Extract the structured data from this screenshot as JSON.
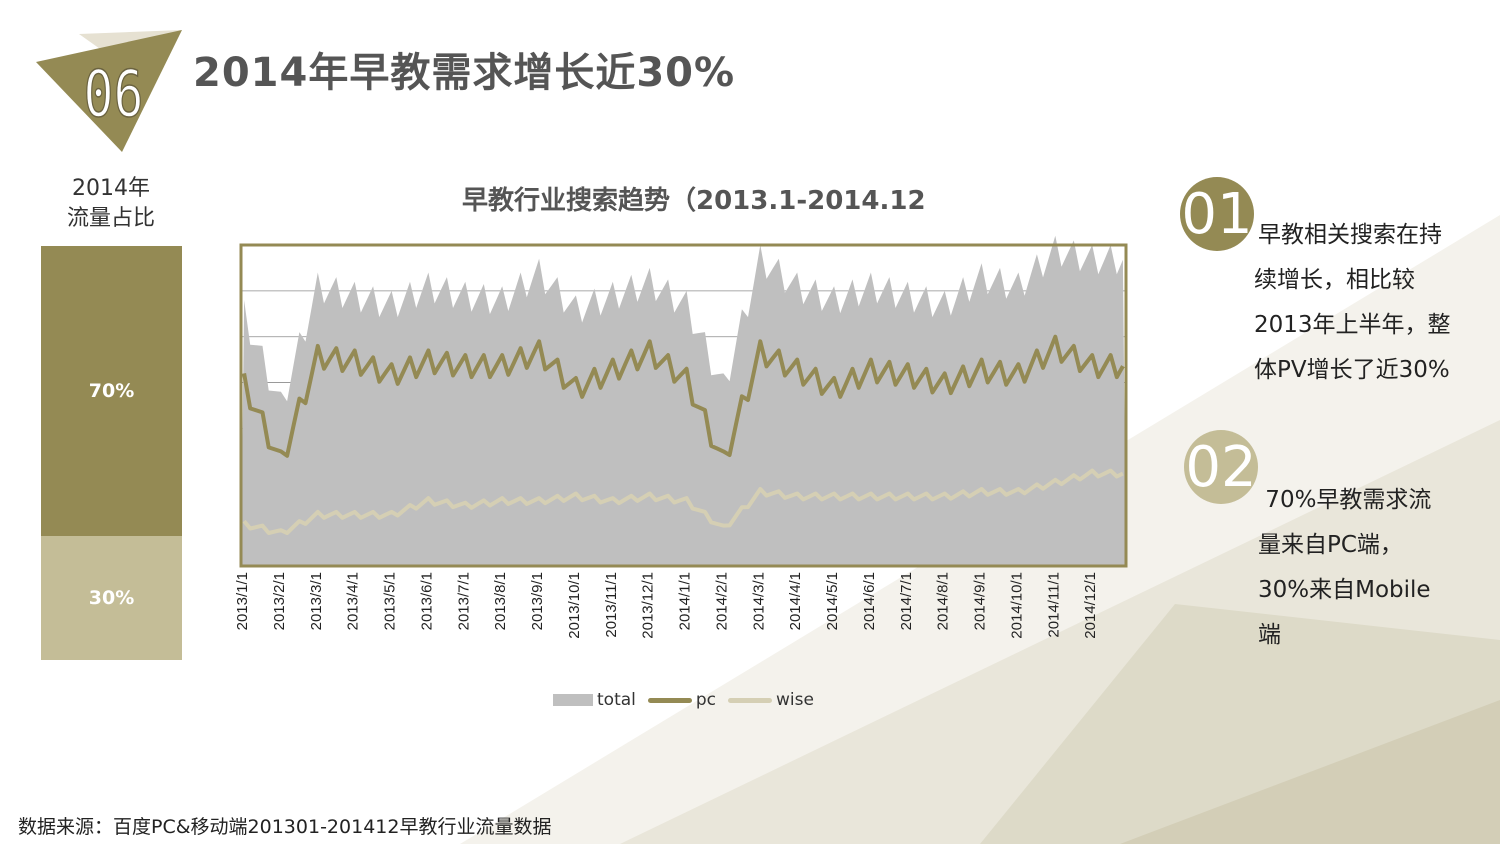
{
  "header": {
    "badge_number": "06",
    "title": "2014年早教需求增长近30%"
  },
  "sidebar": {
    "title_line1": "2014年",
    "title_line2": "流量占比",
    "segments": [
      {
        "label": "70%",
        "value": 70,
        "color": "#948a54"
      },
      {
        "label": "30%",
        "value": 30,
        "color": "#c4bd97"
      }
    ]
  },
  "chart_data": {
    "type": "area",
    "title": "早教行业搜索趋势（2013.1-2014.12",
    "x_tick_labels": [
      "2013/1/1",
      "2013/2/1",
      "2013/3/1",
      "2013/4/1",
      "2013/5/1",
      "2013/6/1",
      "2013/7/1",
      "2013/8/1",
      "2013/9/1",
      "2013/10/1",
      "2013/11/1",
      "2013/12/1",
      "2014/1/1",
      "2014/2/1",
      "2014/3/1",
      "2014/4/1",
      "2014/5/1",
      "2014/6/1",
      "2014/7/1",
      "2014/8/1",
      "2014/9/1",
      "2014/10/1",
      "2014/11/1",
      "2014/12/1"
    ],
    "y_axis_labels_shown": false,
    "grid": true,
    "legend_position": "bottom",
    "series": [
      {
        "name": "total",
        "kind": "area",
        "color": "#bfbfbf",
        "monthly_values": [
          54,
          34,
          60,
          58,
          56,
          60,
          58,
          57,
          63,
          55,
          58,
          61,
          56,
          38,
          66,
          60,
          57,
          60,
          58,
          56,
          62,
          60,
          68,
          66
        ]
      },
      {
        "name": "pc",
        "kind": "line",
        "color": "#948a54",
        "monthly_values": [
          39,
          22,
          45,
          44,
          41,
          44,
          43,
          43,
          46,
          38,
          42,
          46,
          40,
          22,
          46,
          42,
          38,
          42,
          41,
          39,
          42,
          41,
          47,
          43
        ]
      },
      {
        "name": "wise",
        "kind": "line",
        "color": "#d5cfb4",
        "monthly_values": [
          9,
          7,
          11,
          11,
          11,
          14,
          13,
          14,
          14,
          15,
          14,
          15,
          14,
          8,
          16,
          15,
          15,
          15,
          15,
          15,
          16,
          16,
          18,
          20
        ]
      }
    ]
  },
  "notes": [
    {
      "number": "01",
      "lines": [
        "早教相关搜索在持",
        "续增长，相比较",
        "2013年上半年，整",
        "体PV增长了近30%"
      ]
    },
    {
      "number": "02",
      "lines": [
        " 70%早教需求流",
        "量来自PC端，",
        "30%来自Mobile",
        "端"
      ]
    }
  ],
  "source": "数据来源：百度PC&移动端201301-201412早教行业流量数据",
  "colors": {
    "accent_dark": "#948a54",
    "accent_light": "#c4bd97",
    "area_gray": "#bfbfbf",
    "deco_light": "#eeebe2"
  }
}
